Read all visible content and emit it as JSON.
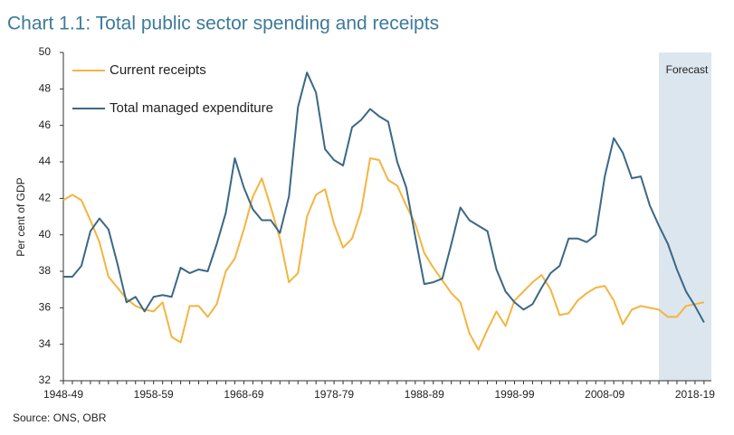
{
  "chart_data": {
    "type": "line",
    "title": "Chart 1.1:  Total public sector spending and receipts",
    "y_label": "Per cent of GDP",
    "source": "Source: ONS, OBR",
    "annotation": "Forecast",
    "forecast_start_index": 66,
    "categories": [
      "1948-49",
      null,
      null,
      null,
      null,
      null,
      null,
      null,
      null,
      null,
      "1958-59",
      null,
      null,
      null,
      null,
      null,
      null,
      null,
      null,
      null,
      "1968-69",
      null,
      null,
      null,
      null,
      null,
      null,
      null,
      null,
      null,
      "1978-79",
      null,
      null,
      null,
      null,
      null,
      null,
      null,
      null,
      null,
      "1988-89",
      null,
      null,
      null,
      null,
      null,
      null,
      null,
      null,
      null,
      "1998-99",
      null,
      null,
      null,
      null,
      null,
      null,
      null,
      null,
      null,
      "2008-09",
      null,
      null,
      null,
      null,
      null,
      null,
      null,
      null,
      null,
      "2018-19",
      null
    ],
    "series": [
      {
        "name": "Current receipts",
        "color": "#f3b53f",
        "values": [
          41.9,
          42.2,
          41.9,
          40.8,
          39.6,
          37.7,
          37.1,
          36.5,
          36.1,
          35.9,
          35.8,
          36.3,
          34.4,
          34.1,
          36.1,
          36.1,
          35.5,
          36.2,
          38.0,
          38.7,
          40.3,
          42.1,
          43.1,
          41.5,
          39.8,
          37.4,
          37.9,
          41.0,
          42.2,
          42.5,
          40.6,
          39.3,
          39.8,
          41.3,
          44.2,
          44.1,
          43.0,
          42.7,
          41.6,
          40.6,
          39.0,
          38.2,
          37.5,
          36.8,
          36.3,
          34.6,
          33.7,
          34.8,
          35.8,
          35.0,
          36.4,
          36.9,
          37.4,
          37.8,
          37.0,
          35.6,
          35.7,
          36.4,
          36.8,
          37.1,
          37.2,
          36.4,
          35.1,
          35.9,
          36.1,
          36.0,
          35.9,
          35.5,
          35.5,
          36.1,
          36.2,
          36.3
        ]
      },
      {
        "name": "Total managed expenditure",
        "color": "#3b6886",
        "values": [
          37.7,
          37.7,
          38.3,
          40.2,
          40.9,
          40.3,
          38.4,
          36.3,
          36.6,
          35.8,
          36.6,
          36.7,
          36.6,
          38.2,
          37.9,
          38.1,
          38.0,
          39.5,
          41.2,
          44.2,
          42.6,
          41.4,
          40.8,
          40.8,
          40.1,
          42.1,
          47.0,
          48.9,
          47.8,
          44.7,
          44.1,
          43.8,
          45.9,
          46.3,
          46.9,
          46.5,
          46.2,
          44.0,
          42.6,
          39.9,
          37.3,
          37.4,
          37.6,
          39.5,
          41.5,
          40.8,
          40.5,
          40.2,
          38.1,
          36.9,
          36.3,
          35.9,
          36.2,
          37.1,
          37.9,
          38.3,
          39.8,
          39.8,
          39.6,
          40.0,
          43.2,
          45.3,
          44.5,
          43.1,
          43.2,
          41.6,
          40.5,
          39.5,
          38.1,
          36.9,
          36.1,
          35.2
        ]
      }
    ],
    "ylim": [
      32,
      50
    ],
    "yticks": [
      32,
      34,
      36,
      38,
      40,
      42,
      44,
      46,
      48,
      50
    ],
    "forecast_color": "#dce6ee"
  }
}
